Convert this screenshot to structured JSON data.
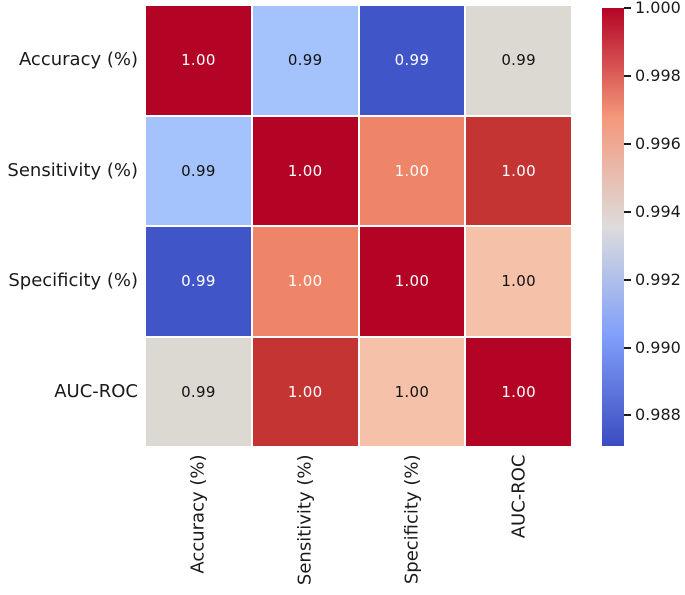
{
  "chart_data": {
    "type": "heatmap",
    "title": "",
    "colormap": "coolwarm",
    "grid": false,
    "row_labels": [
      "Accuracy (%)",
      "Sensitivity (%)",
      "Specificity (%)",
      "AUC-ROC"
    ],
    "col_labels": [
      "Accuracy (%)",
      "Sensitivity (%)",
      "Specificity (%)",
      "AUC-ROC"
    ],
    "values_display": [
      [
        "1.00",
        "0.99",
        "0.99",
        "0.99"
      ],
      [
        "0.99",
        "1.00",
        "1.00",
        "1.00"
      ],
      [
        "0.99",
        "1.00",
        "1.00",
        "1.00"
      ],
      [
        "0.99",
        "1.00",
        "1.00",
        "1.00"
      ]
    ],
    "values_estimated_from_color": [
      [
        1.0,
        0.991,
        0.987,
        0.994
      ],
      [
        0.991,
        1.0,
        0.997,
        0.999
      ],
      [
        0.987,
        0.997,
        1.0,
        0.996
      ],
      [
        0.994,
        0.999,
        0.996,
        1.0
      ]
    ],
    "cell_colors": [
      [
        "#b40426",
        "#a4c3fc",
        "#4055c8",
        "#dcd9d3"
      ],
      [
        "#a4c3fc",
        "#b40426",
        "#ee8468",
        "#c43432"
      ],
      [
        "#4055c8",
        "#ee8468",
        "#b40426",
        "#f5c1a9"
      ],
      [
        "#dcd9d3",
        "#c43432",
        "#f5c1a9",
        "#b40426"
      ]
    ],
    "cell_text_colors": [
      [
        "#ffffff",
        "#111111",
        "#ffffff",
        "#111111"
      ],
      [
        "#111111",
        "#ffffff",
        "#ffffff",
        "#ffffff"
      ],
      [
        "#ffffff",
        "#ffffff",
        "#ffffff",
        "#111111"
      ],
      [
        "#111111",
        "#ffffff",
        "#111111",
        "#ffffff"
      ]
    ],
    "colorbar": {
      "position": "right",
      "vmin": 0.9871,
      "vmax": 1.0,
      "tick_labels": [
        "1.000",
        "0.998",
        "0.996",
        "0.994",
        "0.992",
        "0.990",
        "0.988"
      ],
      "tick_values": [
        1.0,
        0.998,
        0.996,
        0.994,
        0.992,
        0.99,
        0.988
      ],
      "gradient_stops_bottom_to_top": [
        "#3b4cc0",
        "#7f9ff9",
        "#dddcdc",
        "#f4987a",
        "#b40426"
      ]
    }
  }
}
